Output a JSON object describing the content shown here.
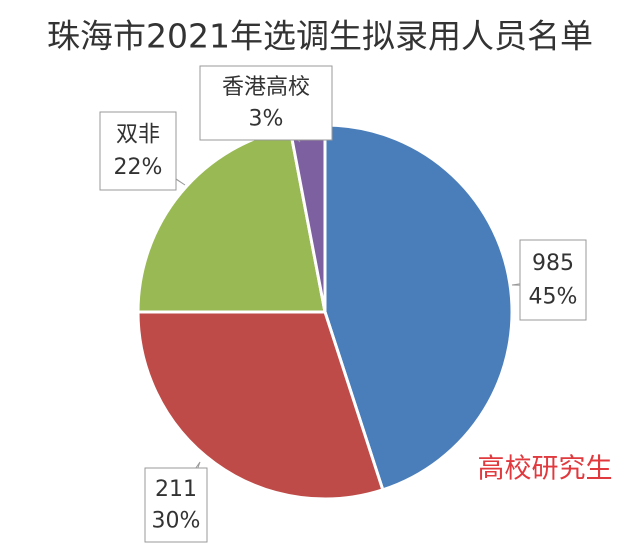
{
  "chart_data": {
    "type": "pie",
    "title": "珠海市2021年选调生拟录用人员名单",
    "categories": [
      "985",
      "211",
      "双非",
      "香港高校"
    ],
    "values": [
      45,
      30,
      22,
      3
    ],
    "value_labels": [
      "45%",
      "30%",
      "22%",
      "3%"
    ],
    "colors": [
      "#4a7ebb",
      "#be4b48",
      "#98b954",
      "#7d60a0"
    ],
    "watermark": "高校研究生"
  }
}
